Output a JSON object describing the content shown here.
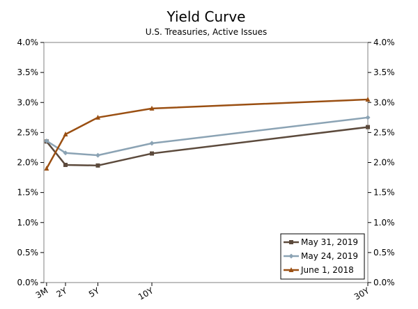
{
  "chart_data": {
    "type": "line",
    "title": "Yield Curve",
    "subtitle": "U.S. Treasuries, Active Issues",
    "xlabel": "",
    "ylabel": "",
    "x": [
      0.25,
      2,
      5,
      10,
      30
    ],
    "x_tick_labels": [
      "3M",
      "2Y",
      "5Y",
      "10Y",
      "30Y"
    ],
    "xlim": [
      0,
      30
    ],
    "ylim": [
      0,
      4.0
    ],
    "y_ticks": [
      0,
      0.5,
      1.0,
      1.5,
      2.0,
      2.5,
      3.0,
      3.5,
      4.0
    ],
    "y_tick_labels": [
      "0.0%",
      "0.5%",
      "1.0%",
      "1.5%",
      "2.0%",
      "2.5%",
      "3.0%",
      "3.5%",
      "4.0%"
    ],
    "grid": false,
    "legend_position": "bottom-right",
    "series": [
      {
        "name": "May 31, 2019",
        "color": "#5c4a3c",
        "marker": "square",
        "values": [
          2.35,
          1.96,
          1.95,
          2.15,
          2.59
        ]
      },
      {
        "name": "May 24, 2019",
        "color": "#8ba3b4",
        "marker": "diamond",
        "values": [
          2.36,
          2.16,
          2.12,
          2.32,
          2.75
        ]
      },
      {
        "name": "June 1, 2018",
        "color": "#9a4f12",
        "marker": "triangle",
        "values": [
          1.9,
          2.47,
          2.75,
          2.9,
          3.05
        ]
      }
    ]
  }
}
